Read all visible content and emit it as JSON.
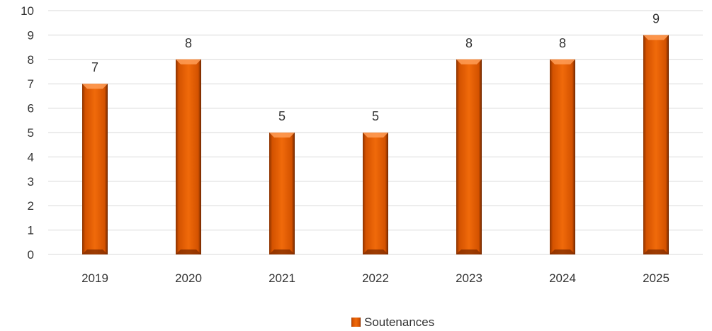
{
  "chart_data": {
    "type": "bar",
    "title": "",
    "xlabel": "",
    "ylabel": "",
    "categories": [
      "2019",
      "2020",
      "2021",
      "2022",
      "2023",
      "2024",
      "2025"
    ],
    "series": [
      {
        "name": "Soutenances",
        "values": [
          7,
          8,
          5,
          5,
          8,
          8,
          9
        ]
      }
    ],
    "ylim": [
      0,
      10
    ],
    "yticks": [
      0,
      1,
      2,
      3,
      4,
      5,
      6,
      7,
      8,
      9,
      10
    ],
    "grid": true,
    "legend_position": "bottom",
    "colors": {
      "bar": "#E65C00",
      "bar_dark": "#7A2A00",
      "bar_light": "#FF9D57",
      "grid": "#D9D9D9"
    }
  }
}
